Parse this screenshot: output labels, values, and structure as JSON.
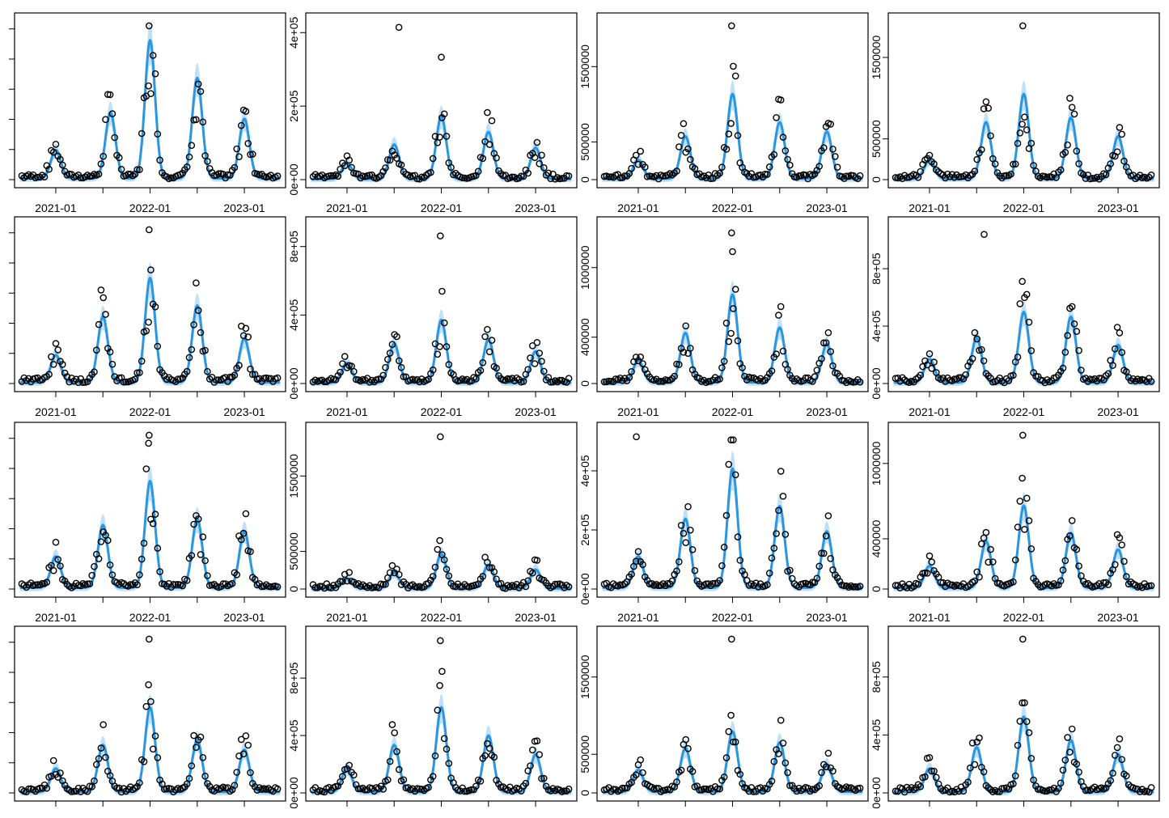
{
  "colors": {
    "fit": "#2b95df",
    "band": "#bfe0f7",
    "points": "#000000",
    "frame": "#000000"
  },
  "chart_data": {
    "type": "scatter",
    "title": "",
    "layout": "4x4 grid of panels",
    "x_ticks": [
      "2021-01",
      "2022-01",
      "2023-01"
    ],
    "x_range": [
      2020.58,
      2023.42
    ],
    "panels": [
      {
        "name": "panel-1",
        "ylim": [
          0,
          1100000
        ],
        "y_ticks": [],
        "peaks": [
          [
            2021.0,
            0.45
          ],
          [
            2021.58,
            1.05
          ],
          [
            2022.0,
            2.2
          ],
          [
            2022.5,
            1.6
          ],
          [
            2023.0,
            0.95
          ]
        ],
        "scale": 0.4,
        "outliers": [
          [
            2021.99,
            1.1
          ]
        ],
        "axis_labels": true
      },
      {
        "name": "panel-2",
        "ylim": [
          0,
          410000
        ],
        "y_ticks": [
          {
            "v": 0,
            "label": "0e+00"
          },
          {
            "v": 200000,
            "label": "2e+05"
          },
          {
            "v": 400000,
            "label": "4e+05"
          }
        ],
        "peaks": [
          [
            2021.0,
            0.5
          ],
          [
            2021.5,
            1.1
          ],
          [
            2022.0,
            2.0
          ],
          [
            2022.5,
            1.5
          ],
          [
            2023.0,
            1.0
          ]
        ],
        "scale": 0.2,
        "outliers": [
          [
            2021.55,
            0.97
          ],
          [
            2022.0,
            0.78
          ]
        ],
        "axis_labels": true
      },
      {
        "name": "panel-3",
        "ylim": [
          0,
          2000000
        ],
        "y_ticks": [
          {
            "v": 0,
            "label": "0"
          },
          {
            "v": 500000,
            "label": "500000"
          },
          {
            "v": 1500000,
            "label": "1500000"
          }
        ],
        "peaks": [
          [
            2021.0,
            0.4
          ],
          [
            2021.5,
            0.9
          ],
          [
            2022.0,
            1.8
          ],
          [
            2022.5,
            1.2
          ],
          [
            2023.0,
            1.0
          ]
        ],
        "scale": 0.3,
        "outliers": [
          [
            2021.99,
            2.1
          ]
        ],
        "axis_labels": true
      },
      {
        "name": "panel-4",
        "ylim": [
          0,
          1850000
        ],
        "y_ticks": [
          {
            "v": 0,
            "label": "0"
          },
          {
            "v": 500000,
            "label": "500000"
          },
          {
            "v": 1500000,
            "label": "1500000"
          }
        ],
        "peaks": [
          [
            2021.0,
            0.4
          ],
          [
            2021.6,
            1.2
          ],
          [
            2022.0,
            1.8
          ],
          [
            2022.5,
            1.3
          ],
          [
            2023.0,
            0.9
          ]
        ],
        "scale": 0.3,
        "outliers": [
          [
            2021.99,
            1.9
          ]
        ],
        "axis_labels": true
      },
      {
        "name": "panel-5",
        "ylim": [
          0,
          900000
        ],
        "y_ticks": [],
        "peaks": [
          [
            2021.0,
            0.5
          ],
          [
            2021.5,
            1.2
          ],
          [
            2022.0,
            1.9
          ],
          [
            2022.5,
            1.4
          ],
          [
            2023.0,
            0.8
          ]
        ],
        "scale": 0.35,
        "outliers": [
          [
            2021.99,
            0.98
          ]
        ],
        "axis_labels": true
      },
      {
        "name": "panel-6",
        "ylim": [
          0,
          880000
        ],
        "y_ticks": [
          {
            "v": 0,
            "label": "0e+00"
          },
          {
            "v": 400000,
            "label": "4e+05"
          },
          {
            "v": 800000,
            "label": "8e+05"
          }
        ],
        "peaks": [
          [
            2021.0,
            0.5
          ],
          [
            2021.5,
            1.0
          ],
          [
            2022.0,
            1.6
          ],
          [
            2022.5,
            1.1
          ],
          [
            2023.0,
            0.8
          ]
        ],
        "scale": 0.25,
        "outliers": [
          [
            2021.99,
            0.94
          ]
        ],
        "axis_labels": true
      },
      {
        "name": "panel-7",
        "ylim": [
          0,
          1300000
        ],
        "y_ticks": [
          {
            "v": 0,
            "label": "0"
          },
          {
            "v": 400000,
            "label": "400000"
          },
          {
            "v": 1000000,
            "label": "1000000"
          }
        ],
        "peaks": [
          [
            2021.0,
            0.4
          ],
          [
            2021.5,
            0.9
          ],
          [
            2022.0,
            1.6
          ],
          [
            2022.5,
            1.0
          ],
          [
            2023.0,
            0.7
          ]
        ],
        "scale": 0.35,
        "outliers": [
          [
            2021.99,
            0.96
          ],
          [
            2022.0,
            0.84
          ]
        ],
        "axis_labels": true
      },
      {
        "name": "panel-8",
        "ylim": [
          0,
          1050000
        ],
        "y_ticks": [
          {
            "v": 0,
            "label": "0e+00"
          },
          {
            "v": 400000,
            "label": "4e+05"
          },
          {
            "v": 800000,
            "label": "8e+05"
          }
        ],
        "peaks": [
          [
            2021.0,
            0.5
          ],
          [
            2021.5,
            0.95
          ],
          [
            2022.0,
            1.5
          ],
          [
            2022.5,
            1.4
          ],
          [
            2023.0,
            0.8
          ]
        ],
        "scale": 0.3,
        "outliers": [
          [
            2021.58,
            0.95
          ]
        ],
        "axis_labels": true
      },
      {
        "name": "panel-9",
        "ylim": [
          0,
          2000000
        ],
        "y_ticks": [],
        "peaks": [
          [
            2021.0,
            0.5
          ],
          [
            2021.5,
            1.0
          ],
          [
            2022.0,
            1.7
          ],
          [
            2022.5,
            1.1
          ],
          [
            2023.0,
            0.9
          ]
        ],
        "scale": 0.4,
        "outliers": [
          [
            2021.99,
            0.98
          ]
        ],
        "axis_labels": true
      },
      {
        "name": "panel-10",
        "ylim": [
          0,
          2000000
        ],
        "y_ticks": [
          {
            "v": 0,
            "label": "0"
          },
          {
            "v": 500000,
            "label": "500000"
          },
          {
            "v": 1500000,
            "label": "1500000"
          }
        ],
        "peaks": [
          [
            2021.0,
            0.3
          ],
          [
            2021.5,
            0.5
          ],
          [
            2022.0,
            1.1
          ],
          [
            2022.5,
            0.75
          ],
          [
            2023.0,
            0.6
          ]
        ],
        "scale": 0.2,
        "outliers": [
          [
            2021.99,
            0.97
          ]
        ],
        "axis_labels": true
      },
      {
        "name": "panel-11",
        "ylim": [
          0,
          510000
        ],
        "y_ticks": [
          {
            "v": 0,
            "label": "0e+00"
          },
          {
            "v": 200000,
            "label": "2e+05"
          },
          {
            "v": 400000,
            "label": "4e+05"
          }
        ],
        "peaks": [
          [
            2021.0,
            0.5
          ],
          [
            2021.5,
            1.1
          ],
          [
            2022.0,
            1.9
          ],
          [
            2022.5,
            1.3
          ],
          [
            2023.0,
            0.9
          ]
        ],
        "scale": 0.4,
        "outliers": [
          [
            2020.98,
            0.97
          ]
        ],
        "axis_labels": true
      },
      {
        "name": "panel-12",
        "ylim": [
          0,
          1200000
        ],
        "y_ticks": [
          {
            "v": 0,
            "label": "0"
          },
          {
            "v": 400000,
            "label": "400000"
          },
          {
            "v": 1000000,
            "label": "1000000"
          }
        ],
        "peaks": [
          [
            2021.0,
            0.4
          ],
          [
            2021.6,
            0.85
          ],
          [
            2022.0,
            1.5
          ],
          [
            2022.5,
            1.0
          ],
          [
            2023.0,
            0.7
          ]
        ],
        "scale": 0.35,
        "outliers": [
          [
            2021.99,
            0.99
          ]
        ],
        "axis_labels": true
      },
      {
        "name": "panel-13",
        "ylim": [
          0,
          1000000
        ],
        "y_ticks": [],
        "peaks": [
          [
            2021.0,
            0.5
          ],
          [
            2021.5,
            1.0
          ],
          [
            2022.0,
            1.8
          ],
          [
            2022.5,
            1.1
          ],
          [
            2023.0,
            0.9
          ]
        ],
        "scale": 0.3,
        "outliers": [
          [
            2021.99,
            0.98
          ]
        ],
        "axis_labels": false
      },
      {
        "name": "panel-14",
        "ylim": [
          0,
          1050000
        ],
        "y_ticks": [
          {
            "v": 0,
            "label": "0e+00"
          },
          {
            "v": 400000,
            "label": "4e+05"
          },
          {
            "v": 800000,
            "label": "8e+05"
          }
        ],
        "peaks": [
          [
            2021.0,
            0.5
          ],
          [
            2021.5,
            1.0
          ],
          [
            2022.0,
            1.8
          ],
          [
            2022.5,
            1.2
          ],
          [
            2023.0,
            0.8
          ]
        ],
        "scale": 0.3,
        "outliers": [
          [
            2021.99,
            0.97
          ]
        ],
        "axis_labels": false
      },
      {
        "name": "panel-15",
        "ylim": [
          0,
          1950000
        ],
        "y_ticks": [
          {
            "v": 0,
            "label": "0"
          },
          {
            "v": 500000,
            "label": "500000"
          },
          {
            "v": 1500000,
            "label": "1500000"
          }
        ],
        "peaks": [
          [
            2021.0,
            0.4
          ],
          [
            2021.5,
            0.8
          ],
          [
            2022.0,
            1.1
          ],
          [
            2022.5,
            0.9
          ],
          [
            2023.0,
            0.5
          ]
        ],
        "scale": 0.35,
        "outliers": [
          [
            2021.99,
            1.95
          ]
        ],
        "axis_labels": false
      },
      {
        "name": "panel-16",
        "ylim": [
          0,
          1040000
        ],
        "y_ticks": [
          {
            "v": 0,
            "label": "0e+00"
          },
          {
            "v": 400000,
            "label": "4e+05"
          },
          {
            "v": 800000,
            "label": "8e+05"
          }
        ],
        "peaks": [
          [
            2021.0,
            0.5
          ],
          [
            2021.5,
            0.95
          ],
          [
            2022.0,
            1.6
          ],
          [
            2022.5,
            1.1
          ],
          [
            2023.0,
            0.8
          ]
        ],
        "scale": 0.3,
        "outliers": [
          [
            2021.99,
            0.98
          ]
        ],
        "axis_labels": false
      }
    ]
  }
}
